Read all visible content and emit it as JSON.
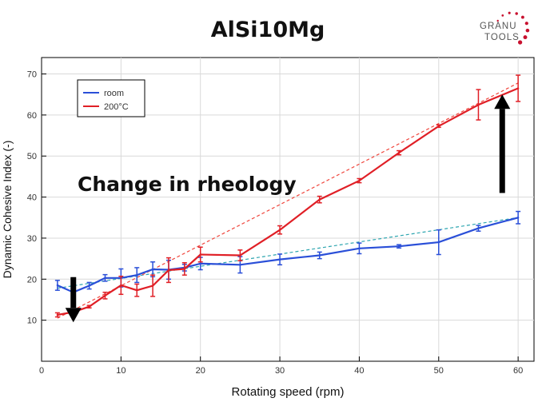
{
  "page": {
    "title": "AlSi10Mg"
  },
  "logo": {
    "line1": "GRANU",
    "line2": "TOOLS"
  },
  "annotation": {
    "text": "Change in rheology"
  },
  "colors": {
    "room": "#2a4fd8",
    "hot": "#e01f26",
    "room_fit": "#2ea6b0",
    "hot_fit": "#f0463d",
    "plot_bg": "#ffffff",
    "frame": "#000000",
    "grid": "#d9d9d9",
    "arrow": "#000000",
    "logo_dots": "#c8102e"
  },
  "chart_data": {
    "type": "line",
    "title": "AlSi10Mg",
    "xlabel": "Rotating speed (rpm)",
    "ylabel": "Dynamic Cohesive Index (-)",
    "xlim": [
      0,
      62
    ],
    "ylim": [
      0,
      74
    ],
    "xticks": [
      "0",
      "10",
      "20",
      "30",
      "40",
      "50",
      "60"
    ],
    "yticks": [
      "10",
      "20",
      "30",
      "40",
      "50",
      "60",
      "70"
    ],
    "grid": true,
    "legend": "top-left",
    "series": [
      {
        "name": "room",
        "x": [
          2,
          4,
          6,
          8,
          10,
          12,
          14,
          16,
          18,
          20,
          25,
          30,
          35,
          40,
          45,
          50,
          55,
          60
        ],
        "y": [
          18.5,
          16.8,
          18.4,
          20.3,
          20.3,
          21.0,
          22.4,
          22.3,
          22.8,
          23.8,
          23.5,
          24.8,
          25.8,
          27.5,
          28.0,
          29.0,
          32.4,
          35.0
        ],
        "err": [
          1.2,
          1.2,
          0.8,
          0.8,
          2.2,
          1.8,
          1.8,
          2.3,
          0.8,
          1.5,
          2.0,
          1.3,
          0.8,
          1.3,
          0.4,
          3.0,
          0.7,
          1.5
        ]
      },
      {
        "name": "200°C",
        "x": [
          2,
          4,
          6,
          8,
          10,
          12,
          14,
          16,
          18,
          20,
          25,
          30,
          35,
          40,
          45,
          50,
          55,
          60
        ],
        "y": [
          11.3,
          12.0,
          13.3,
          16.0,
          18.5,
          17.3,
          18.4,
          22.2,
          22.5,
          26.0,
          25.8,
          32.0,
          39.4,
          44.0,
          50.8,
          57.3,
          62.5,
          66.5
        ],
        "err": [
          0.5,
          0.5,
          0.3,
          0.8,
          2.2,
          1.5,
          2.6,
          3.0,
          1.5,
          1.8,
          1.3,
          1.0,
          0.8,
          0.5,
          0.5,
          0.3,
          3.7,
          3.2
        ]
      }
    ],
    "trendlines": [
      {
        "series": "room",
        "x": [
          2,
          60
        ],
        "y": [
          17.8,
          35.0
        ],
        "style": "dashed"
      },
      {
        "series": "200°C",
        "x": [
          2,
          60
        ],
        "y": [
          10.5,
          67.8
        ],
        "style": "dashed"
      }
    ],
    "arrows": [
      {
        "x": 4,
        "y_from": 20.5,
        "y_to": 9.5,
        "direction": "down"
      },
      {
        "x": 58,
        "y_from": 41.0,
        "y_to": 65.0,
        "direction": "up"
      }
    ]
  }
}
